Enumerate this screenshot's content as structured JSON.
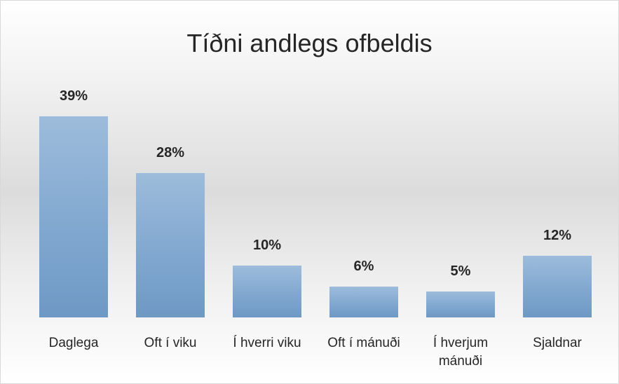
{
  "chart_data": {
    "type": "bar",
    "title": "Tíðni andlegs ofbeldis",
    "categories": [
      "Daglega",
      "Oft í viku",
      "Í hverri viku",
      "Oft í mánuði",
      "Í hverjum mánuði",
      "Sjaldnar"
    ],
    "values": [
      39,
      28,
      10,
      6,
      5,
      12
    ],
    "value_labels": [
      "39%",
      "28%",
      "10%",
      "6%",
      "5%",
      "12%"
    ],
    "color": "#7fa6cf"
  }
}
